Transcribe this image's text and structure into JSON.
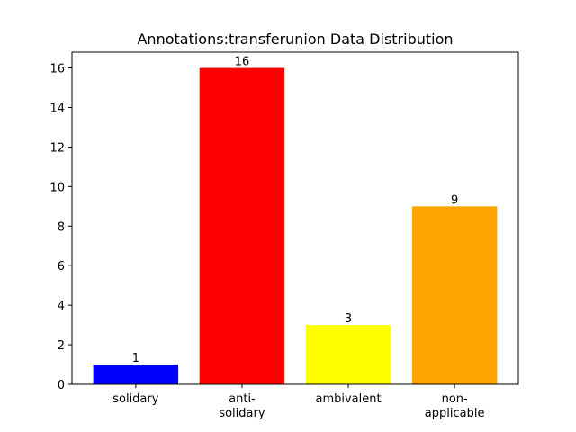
{
  "chart_data": {
    "type": "bar",
    "title": "Annotations:transferunion Data Distribution",
    "categories": [
      [
        "solidary"
      ],
      [
        "anti-",
        "solidary"
      ],
      [
        "ambivalent"
      ],
      [
        "non-",
        "applicable"
      ]
    ],
    "values": [
      1,
      16,
      3,
      9
    ],
    "colors": [
      "#0000ff",
      "#ff0000",
      "#ffff00",
      "#ffa500"
    ],
    "ylim": [
      0,
      16.8
    ],
    "yticks": [
      0,
      2,
      4,
      6,
      8,
      10,
      12,
      14,
      16
    ],
    "xlabel": "",
    "ylabel": "",
    "grid": false,
    "legend": "none"
  }
}
